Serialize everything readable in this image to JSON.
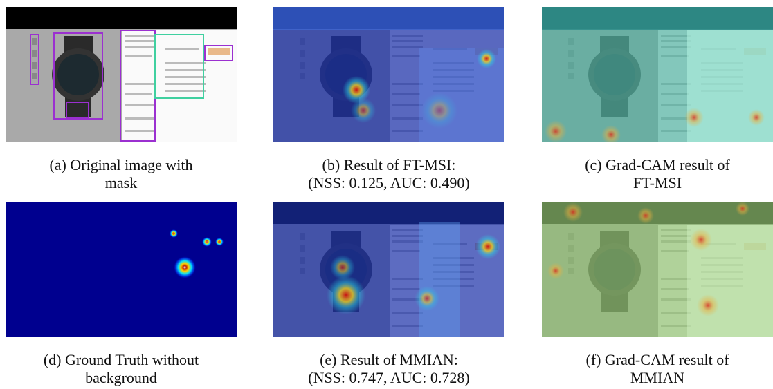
{
  "figure": {
    "panels": [
      {
        "caption": [
          "(a) Original image with",
          "mask"
        ]
      },
      {
        "caption": [
          "(b) Result of FT-MSI:",
          "(NSS: 0.125, AUC: 0.490)"
        ]
      },
      {
        "caption": [
          "(c) Grad-CAM result of",
          "FT-MSI"
        ]
      },
      {
        "caption": [
          "(d) Ground Truth without",
          "background"
        ]
      },
      {
        "caption": [
          "(e) Result of MMIAN:",
          "(NSS: 0.747, AUC: 0.728)"
        ]
      },
      {
        "caption": [
          "(f) Grad-CAM result of",
          "MMIAN"
        ]
      }
    ]
  }
}
